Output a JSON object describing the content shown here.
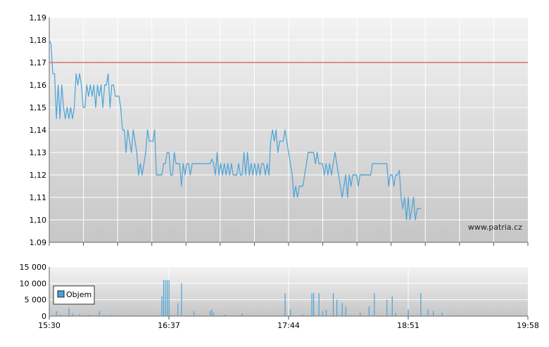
{
  "watermark": "www.patria.cz",
  "colors": {
    "price_line": "#4aa3d8",
    "reference_line": "#c83232",
    "volume_bar": "#4aa3d8",
    "grid": "#ffffff",
    "bg_top": "#f3f3f3",
    "bg_bottom": "#c8c8c8"
  },
  "chart_data": [
    {
      "type": "line",
      "name": "price",
      "ylim": [
        1.09,
        1.19
      ],
      "y_ticks": [
        "1,19",
        "1,18",
        "1,17",
        "1,16",
        "1,15",
        "1,14",
        "1,13",
        "1,12",
        "1,11",
        "1,10",
        "1.09"
      ],
      "reference_value": 1.17,
      "x_range": [
        "15:30",
        "19:58"
      ],
      "grid": true,
      "points": [
        [
          "15:30",
          1.18
        ],
        [
          "15:31",
          1.178
        ],
        [
          "15:32",
          1.165
        ],
        [
          "15:33",
          1.165
        ],
        [
          "15:34",
          1.145
        ],
        [
          "15:35",
          1.16
        ],
        [
          "15:36",
          1.145
        ],
        [
          "15:37",
          1.16
        ],
        [
          "15:38",
          1.15
        ],
        [
          "15:39",
          1.145
        ],
        [
          "15:40",
          1.15
        ],
        [
          "15:41",
          1.145
        ],
        [
          "15:42",
          1.15
        ],
        [
          "15:43",
          1.145
        ],
        [
          "15:44",
          1.15
        ],
        [
          "15:45",
          1.165
        ],
        [
          "15:46",
          1.16
        ],
        [
          "15:47",
          1.165
        ],
        [
          "15:48",
          1.16
        ],
        [
          "15:49",
          1.15
        ],
        [
          "15:50",
          1.15
        ],
        [
          "15:51",
          1.16
        ],
        [
          "15:52",
          1.155
        ],
        [
          "15:53",
          1.16
        ],
        [
          "15:54",
          1.155
        ],
        [
          "15:55",
          1.16
        ],
        [
          "15:56",
          1.15
        ],
        [
          "15:57",
          1.16
        ],
        [
          "15:58",
          1.155
        ],
        [
          "15:59",
          1.16
        ],
        [
          "16:00",
          1.15
        ],
        [
          "16:01",
          1.16
        ],
        [
          "16:02",
          1.16
        ],
        [
          "16:03",
          1.165
        ],
        [
          "16:04",
          1.15
        ],
        [
          "16:05",
          1.16
        ],
        [
          "16:06",
          1.16
        ],
        [
          "16:07",
          1.155
        ],
        [
          "16:08",
          1.155
        ],
        [
          "16:09",
          1.155
        ],
        [
          "16:10",
          1.15
        ],
        [
          "16:11",
          1.14
        ],
        [
          "16:12",
          1.14
        ],
        [
          "16:13",
          1.13
        ],
        [
          "16:14",
          1.14
        ],
        [
          "16:15",
          1.135
        ],
        [
          "16:16",
          1.13
        ],
        [
          "16:17",
          1.14
        ],
        [
          "16:18",
          1.135
        ],
        [
          "16:19",
          1.13
        ],
        [
          "16:20",
          1.12
        ],
        [
          "16:21",
          1.125
        ],
        [
          "16:22",
          1.12
        ],
        [
          "16:23",
          1.125
        ],
        [
          "16:24",
          1.13
        ],
        [
          "16:25",
          1.14
        ],
        [
          "16:26",
          1.135
        ],
        [
          "16:27",
          1.135
        ],
        [
          "16:28",
          1.135
        ],
        [
          "16:29",
          1.14
        ],
        [
          "16:30",
          1.12
        ],
        [
          "16:31",
          1.12
        ],
        [
          "16:32",
          1.12
        ],
        [
          "16:33",
          1.12
        ],
        [
          "16:34",
          1.125
        ],
        [
          "16:35",
          1.125
        ],
        [
          "16:36",
          1.13
        ],
        [
          "16:37",
          1.13
        ],
        [
          "16:38",
          1.12
        ],
        [
          "16:39",
          1.12
        ],
        [
          "16:40",
          1.13
        ],
        [
          "16:41",
          1.125
        ],
        [
          "16:42",
          1.125
        ],
        [
          "16:43",
          1.125
        ],
        [
          "16:44",
          1.115
        ],
        [
          "16:45",
          1.125
        ],
        [
          "16:46",
          1.12
        ],
        [
          "16:47",
          1.125
        ],
        [
          "16:48",
          1.125
        ],
        [
          "16:49",
          1.12
        ],
        [
          "16:50",
          1.125
        ],
        [
          "16:51",
          1.125
        ],
        [
          "16:52",
          1.125
        ],
        [
          "16:54",
          1.125
        ],
        [
          "16:56",
          1.125
        ],
        [
          "16:58",
          1.125
        ],
        [
          "17:00",
          1.125
        ],
        [
          "17:01",
          1.127
        ],
        [
          "17:02",
          1.125
        ],
        [
          "17:03",
          1.12
        ],
        [
          "17:04",
          1.13
        ],
        [
          "17:05",
          1.12
        ],
        [
          "17:06",
          1.125
        ],
        [
          "17:07",
          1.12
        ],
        [
          "17:08",
          1.125
        ],
        [
          "17:09",
          1.12
        ],
        [
          "17:10",
          1.125
        ],
        [
          "17:11",
          1.12
        ],
        [
          "17:12",
          1.125
        ],
        [
          "17:13",
          1.12
        ],
        [
          "17:14",
          1.12
        ],
        [
          "17:15",
          1.12
        ],
        [
          "17:16",
          1.125
        ],
        [
          "17:17",
          1.12
        ],
        [
          "17:18",
          1.12
        ],
        [
          "17:19",
          1.13
        ],
        [
          "17:20",
          1.12
        ],
        [
          "17:21",
          1.13
        ],
        [
          "17:22",
          1.12
        ],
        [
          "17:23",
          1.125
        ],
        [
          "17:24",
          1.12
        ],
        [
          "17:25",
          1.125
        ],
        [
          "17:26",
          1.12
        ],
        [
          "17:27",
          1.125
        ],
        [
          "17:28",
          1.12
        ],
        [
          "17:29",
          1.125
        ],
        [
          "17:30",
          1.125
        ],
        [
          "17:31",
          1.12
        ],
        [
          "17:32",
          1.125
        ],
        [
          "17:33",
          1.12
        ],
        [
          "17:34",
          1.135
        ],
        [
          "17:35",
          1.14
        ],
        [
          "17:36",
          1.135
        ],
        [
          "17:37",
          1.14
        ],
        [
          "17:38",
          1.13
        ],
        [
          "17:39",
          1.135
        ],
        [
          "17:40",
          1.135
        ],
        [
          "17:41",
          1.135
        ],
        [
          "17:42",
          1.14
        ],
        [
          "17:43",
          1.135
        ],
        [
          "17:44",
          1.13
        ],
        [
          "17:45",
          1.125
        ],
        [
          "17:46",
          1.12
        ],
        [
          "17:47",
          1.11
        ],
        [
          "17:48",
          1.115
        ],
        [
          "17:49",
          1.11
        ],
        [
          "17:50",
          1.115
        ],
        [
          "17:51",
          1.115
        ],
        [
          "17:52",
          1.115
        ],
        [
          "17:53",
          1.12
        ],
        [
          "17:54",
          1.125
        ],
        [
          "17:55",
          1.13
        ],
        [
          "17:56",
          1.13
        ],
        [
          "17:57",
          1.13
        ],
        [
          "17:58",
          1.13
        ],
        [
          "17:59",
          1.125
        ],
        [
          "18:00",
          1.13
        ],
        [
          "18:01",
          1.125
        ],
        [
          "18:02",
          1.125
        ],
        [
          "18:03",
          1.125
        ],
        [
          "18:04",
          1.12
        ],
        [
          "18:05",
          1.125
        ],
        [
          "18:06",
          1.12
        ],
        [
          "18:07",
          1.125
        ],
        [
          "18:08",
          1.12
        ],
        [
          "18:09",
          1.125
        ],
        [
          "18:10",
          1.13
        ],
        [
          "18:11",
          1.125
        ],
        [
          "18:12",
          1.12
        ],
        [
          "18:13",
          1.115
        ],
        [
          "18:14",
          1.11
        ],
        [
          "18:15",
          1.115
        ],
        [
          "18:16",
          1.12
        ],
        [
          "18:17",
          1.11
        ],
        [
          "18:18",
          1.12
        ],
        [
          "18:19",
          1.115
        ],
        [
          "18:20",
          1.12
        ],
        [
          "18:21",
          1.12
        ],
        [
          "18:22",
          1.12
        ],
        [
          "18:23",
          1.115
        ],
        [
          "18:24",
          1.12
        ],
        [
          "18:25",
          1.12
        ],
        [
          "18:26",
          1.12
        ],
        [
          "18:28",
          1.12
        ],
        [
          "18:30",
          1.12
        ],
        [
          "18:31",
          1.125
        ],
        [
          "18:33",
          1.125
        ],
        [
          "18:35",
          1.125
        ],
        [
          "18:37",
          1.125
        ],
        [
          "18:39",
          1.125
        ],
        [
          "18:40",
          1.115
        ],
        [
          "18:41",
          1.12
        ],
        [
          "18:42",
          1.12
        ],
        [
          "18:43",
          1.115
        ],
        [
          "18:44",
          1.12
        ],
        [
          "18:45",
          1.12
        ],
        [
          "18:46",
          1.122
        ],
        [
          "18:47",
          1.11
        ],
        [
          "18:48",
          1.105
        ],
        [
          "18:49",
          1.11
        ],
        [
          "18:50",
          1.1
        ],
        [
          "18:51",
          1.11
        ],
        [
          "18:52",
          1.1
        ],
        [
          "18:53",
          1.105
        ],
        [
          "18:54",
          1.11
        ],
        [
          "18:55",
          1.1
        ],
        [
          "18:56",
          1.105
        ],
        [
          "18:57",
          1.105
        ],
        [
          "18:58",
          1.105
        ]
      ]
    },
    {
      "type": "bar",
      "name": "volume",
      "legend": "Objem",
      "ylim": [
        0,
        15000
      ],
      "y_ticks": [
        "15 000",
        "10 000",
        "5 000",
        "0"
      ],
      "x_ticks": [
        "15:30",
        "16:37",
        "17:44",
        "18:51",
        "19:58"
      ],
      "bars": [
        [
          "15:30",
          300
        ],
        [
          "15:34",
          1500
        ],
        [
          "15:36",
          400
        ],
        [
          "15:41",
          2500
        ],
        [
          "15:43",
          800
        ],
        [
          "15:47",
          600
        ],
        [
          "15:52",
          400
        ],
        [
          "15:58",
          1500
        ],
        [
          "16:05",
          500
        ],
        [
          "16:16",
          300
        ],
        [
          "16:25",
          200
        ],
        [
          "16:33",
          6000
        ],
        [
          "16:34",
          11000
        ],
        [
          "16:35",
          11000
        ],
        [
          "16:36",
          11000
        ],
        [
          "16:37",
          11000
        ],
        [
          "16:38",
          300
        ],
        [
          "16:42",
          4000
        ],
        [
          "16:44",
          10000
        ],
        [
          "16:51",
          1500
        ],
        [
          "17:00",
          1500
        ],
        [
          "17:01",
          2000
        ],
        [
          "17:02",
          1000
        ],
        [
          "17:08",
          500
        ],
        [
          "17:18",
          800
        ],
        [
          "17:23",
          300
        ],
        [
          "17:42",
          7000
        ],
        [
          "17:45",
          2000
        ],
        [
          "17:52",
          500
        ],
        [
          "17:57",
          7000
        ],
        [
          "17:58",
          7000
        ],
        [
          "18:01",
          7000
        ],
        [
          "18:03",
          1500
        ],
        [
          "18:05",
          2000
        ],
        [
          "18:09",
          7000
        ],
        [
          "18:11",
          5000
        ],
        [
          "18:14",
          4000
        ],
        [
          "18:16",
          3000
        ],
        [
          "18:24",
          1000
        ],
        [
          "18:29",
          3000
        ],
        [
          "18:32",
          7000
        ],
        [
          "18:39",
          5000
        ],
        [
          "18:42",
          6000
        ],
        [
          "18:44",
          1000
        ],
        [
          "18:51",
          2000
        ],
        [
          "18:58",
          7000
        ],
        [
          "19:02",
          2000
        ],
        [
          "19:05",
          1500
        ],
        [
          "19:10",
          1000
        ],
        [
          "19:18",
          300
        ],
        [
          "19:25",
          200
        ],
        [
          "19:35",
          200
        ],
        [
          "19:50",
          100
        ],
        [
          "19:57",
          200
        ]
      ]
    }
  ]
}
